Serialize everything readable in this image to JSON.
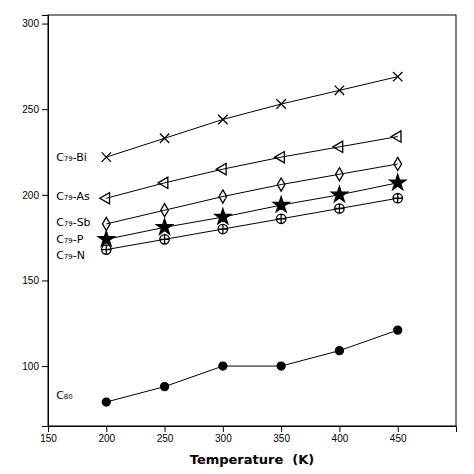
{
  "chart_data": {
    "type": "line",
    "xlabel": "Temperature  (K)",
    "xlim": [
      150,
      500
    ],
    "ylim": [
      65,
      305
    ],
    "xticks": [
      150,
      200,
      250,
      300,
      350,
      400,
      450
    ],
    "yticks": [
      100,
      150,
      200,
      250,
      300
    ],
    "grid": false,
    "color": "#000000",
    "x": [
      200,
      250,
      300,
      350,
      400,
      450
    ],
    "series": [
      {
        "marker": "x",
        "line_style": "solid",
        "values": [
          222,
          233,
          244,
          253,
          261,
          269
        ]
      },
      {
        "marker": "caret-left",
        "line_style": "solid",
        "values": [
          198,
          207,
          215,
          222,
          228,
          234
        ]
      },
      {
        "marker": "diamond-open",
        "line_style": "solid",
        "values": [
          183,
          191,
          199,
          206,
          212,
          218
        ]
      },
      {
        "marker": "star",
        "line_style": "solid",
        "values": [
          174,
          181,
          187,
          194,
          200,
          207
        ]
      },
      {
        "marker": "circle-plus",
        "line_style": "solid",
        "values": [
          168,
          174,
          180,
          186,
          192,
          198
        ]
      },
      {
        "marker": "circle",
        "line_style": "solid",
        "values": [
          79,
          88,
          100,
          100,
          109,
          121
        ]
      }
    ],
    "annotations": [
      {
        "text": "C₇₉-Bi",
        "x": 157,
        "y": 222
      },
      {
        "text": "C₇₉-As",
        "x": 157,
        "y": 199
      },
      {
        "text": "C₇₉-Sb",
        "x": 157,
        "y": 184
      },
      {
        "text": "C₇₉-P",
        "x": 157,
        "y": 174
      },
      {
        "text": "C₇₉-N",
        "x": 157,
        "y": 165
      },
      {
        "text": "C₈₀",
        "x": 157,
        "y": 83
      }
    ]
  }
}
